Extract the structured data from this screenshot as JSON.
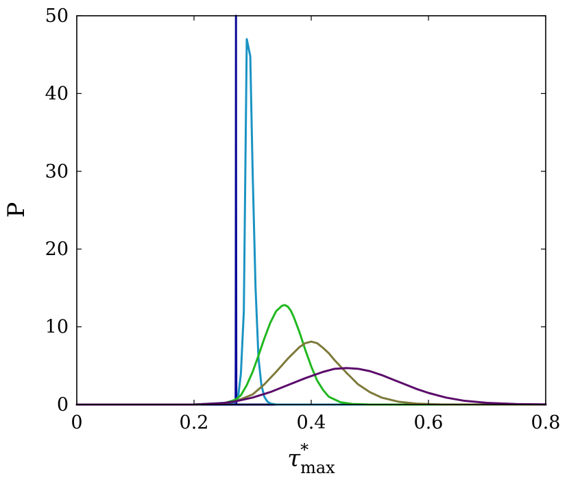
{
  "chart_data": {
    "type": "line",
    "title": "",
    "xlabel": "τ*max",
    "ylabel": "P",
    "xlim": [
      0,
      0.8
    ],
    "ylim": [
      0,
      50
    ],
    "x_ticks": [
      0,
      0.2,
      0.4,
      0.6,
      0.8
    ],
    "x_tick_labels": [
      "0",
      "0.2",
      "0.4",
      "0.6",
      "0.8"
    ],
    "y_ticks": [
      0,
      10,
      20,
      30,
      40,
      50
    ],
    "y_tick_labels": [
      "0",
      "10",
      "20",
      "30",
      "40",
      "50"
    ],
    "grid": false,
    "series": [
      {
        "color": "#0a0a9a",
        "x": [
          0.0,
          0.271,
          0.2712,
          0.2714,
          0.2716,
          0.2718,
          0.2722,
          0.8
        ],
        "y": [
          0,
          0,
          6.0,
          25.0,
          50.0,
          25.0,
          0,
          0
        ]
      },
      {
        "color": "#1a93c3",
        "x": [
          0.0,
          0.2,
          0.27,
          0.275,
          0.28,
          0.285,
          0.29,
          0.296,
          0.3,
          0.305,
          0.31,
          0.315,
          0.32,
          0.325,
          0.33,
          0.34,
          0.8
        ],
        "y": [
          0,
          0,
          0.3,
          0.8,
          4.0,
          12.0,
          47.0,
          44.8,
          30.0,
          15.0,
          6.0,
          2.5,
          1.0,
          0.4,
          0.15,
          0,
          0
        ]
      },
      {
        "color": "#20b820",
        "x": [
          0.0,
          0.2,
          0.25,
          0.27,
          0.28,
          0.29,
          0.3,
          0.31,
          0.32,
          0.33,
          0.34,
          0.35,
          0.355,
          0.36,
          0.365,
          0.37,
          0.38,
          0.39,
          0.4,
          0.41,
          0.42,
          0.43,
          0.45,
          0.47,
          0.5,
          0.8
        ],
        "y": [
          0,
          0,
          0.15,
          0.6,
          1.2,
          2.5,
          4.2,
          6.3,
          8.5,
          10.5,
          12.0,
          12.7,
          12.8,
          12.6,
          12.1,
          11.3,
          9.3,
          7.0,
          4.9,
          3.1,
          1.9,
          1.0,
          0.3,
          0.08,
          0,
          0
        ]
      },
      {
        "color": "#7d7a3a",
        "x": [
          0.0,
          0.2,
          0.25,
          0.27,
          0.3,
          0.32,
          0.34,
          0.36,
          0.38,
          0.39,
          0.4,
          0.41,
          0.42,
          0.43,
          0.44,
          0.46,
          0.48,
          0.5,
          0.52,
          0.55,
          0.58,
          0.62,
          0.8
        ],
        "y": [
          0,
          0,
          0.15,
          0.4,
          1.3,
          2.6,
          4.2,
          5.9,
          7.4,
          7.9,
          8.1,
          7.9,
          7.3,
          6.6,
          5.7,
          4.1,
          2.6,
          1.6,
          0.9,
          0.35,
          0.12,
          0.02,
          0
        ]
      },
      {
        "color": "#5a0a6a",
        "x": [
          0.0,
          0.2,
          0.25,
          0.27,
          0.3,
          0.33,
          0.36,
          0.39,
          0.42,
          0.44,
          0.46,
          0.48,
          0.5,
          0.52,
          0.54,
          0.56,
          0.58,
          0.6,
          0.63,
          0.66,
          0.7,
          0.75,
          0.8
        ],
        "y": [
          0,
          0,
          0.2,
          0.4,
          0.9,
          1.6,
          2.5,
          3.4,
          4.2,
          4.6,
          4.7,
          4.6,
          4.3,
          3.8,
          3.2,
          2.6,
          2.0,
          1.5,
          0.9,
          0.5,
          0.22,
          0.07,
          0.02
        ]
      }
    ]
  }
}
